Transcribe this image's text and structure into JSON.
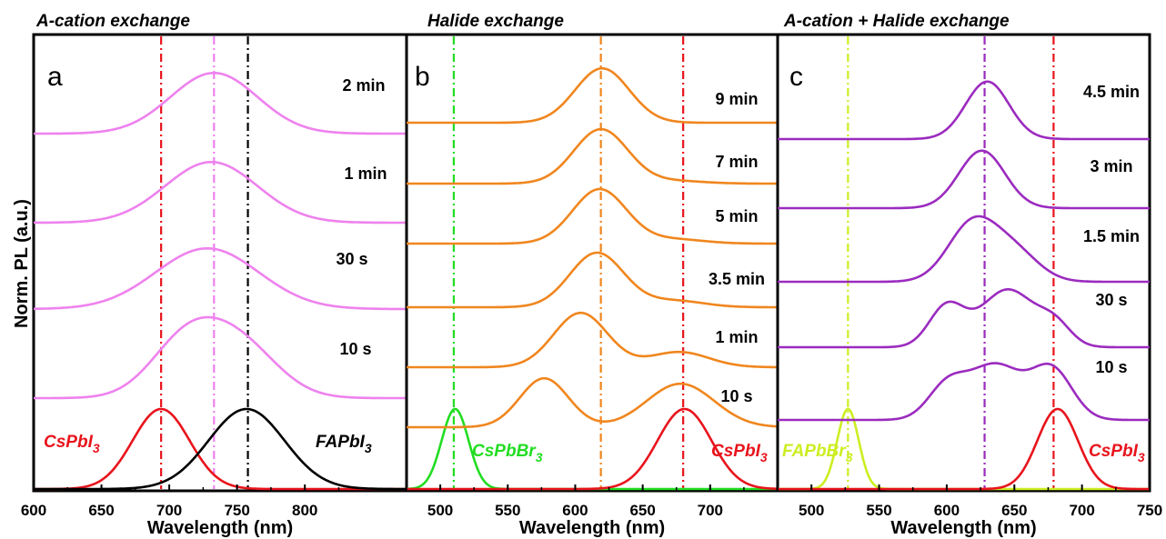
{
  "figure": {
    "ylabel": "Norm. PL (a.u.)"
  },
  "chart_data": [
    {
      "type": "line",
      "panel": "a",
      "title": "A-cation exchange",
      "xlabel": "Wavelength (nm)",
      "xlim": [
        600,
        875
      ],
      "xticks": [
        600,
        650,
        700,
        750,
        800
      ],
      "color_trace": "#ee82ee",
      "vlines": [
        {
          "x": 694,
          "color": "#e8141c"
        },
        {
          "x": 733,
          "color": "#ee82ee"
        },
        {
          "x": 758,
          "color": "#000000"
        }
      ],
      "references": [
        {
          "name": "CsPbI",
          "sub": "3",
          "color": "#e8141c",
          "peaks": [
            {
              "c": 694,
              "w": 21,
              "a": 1
            }
          ]
        },
        {
          "name": "FAPbI",
          "sub": "3",
          "color": "#000000",
          "peaks": [
            {
              "c": 757,
              "w": 28,
              "a": 1
            }
          ]
        }
      ],
      "series": [
        {
          "name": "10 s",
          "peaks": [
            {
              "c": 712,
              "w": 26,
              "a": 0.9
            },
            {
              "c": 752,
              "w": 28,
              "a": 0.85
            }
          ]
        },
        {
          "name": "30 s",
          "peaks": [
            {
              "c": 728,
              "w": 38,
              "a": 1
            }
          ]
        },
        {
          "name": "1 min",
          "peaks": [
            {
              "c": 731,
              "w": 34,
              "a": 1
            }
          ]
        },
        {
          "name": "2 min",
          "peaks": [
            {
              "c": 733,
              "w": 32,
              "a": 1
            }
          ]
        }
      ]
    },
    {
      "type": "line",
      "panel": "b",
      "title": "Halide  exchange",
      "xlabel": "Wavelength (nm)",
      "xlim": [
        475,
        750
      ],
      "xticks": [
        500,
        550,
        600,
        650,
        700
      ],
      "color_trace": "#f0861e",
      "vlines": [
        {
          "x": 510,
          "color": "#22dd22"
        },
        {
          "x": 619,
          "color": "#f0861e"
        },
        {
          "x": 680,
          "color": "#e8141c"
        }
      ],
      "references": [
        {
          "name": "CsPbBr",
          "sub": "3",
          "color": "#22dd22",
          "peaks": [
            {
              "c": 511,
              "w": 10,
              "a": 1
            }
          ]
        },
        {
          "name": "CsPbI",
          "sub": "3",
          "color": "#e8141c",
          "peaks": [
            {
              "c": 681,
              "w": 20,
              "a": 1
            }
          ]
        }
      ],
      "series": [
        {
          "name": "10 s",
          "peaks": [
            {
              "c": 577,
              "w": 18,
              "a": 0.9
            },
            {
              "c": 678,
              "w": 25,
              "a": 0.8
            }
          ]
        },
        {
          "name": "1 min",
          "peaks": [
            {
              "c": 604,
              "w": 20,
              "a": 1
            },
            {
              "c": 677,
              "w": 22,
              "a": 0.28
            }
          ]
        },
        {
          "name": "3.5 min",
          "peaks": [
            {
              "c": 616,
              "w": 20,
              "a": 1
            },
            {
              "c": 673,
              "w": 22,
              "a": 0.12
            }
          ]
        },
        {
          "name": "5 min",
          "peaks": [
            {
              "c": 618,
              "w": 20,
              "a": 1
            },
            {
              "c": 673,
              "w": 22,
              "a": 0.08
            }
          ]
        },
        {
          "name": "7 min",
          "peaks": [
            {
              "c": 619,
              "w": 20,
              "a": 1
            },
            {
              "c": 673,
              "w": 22,
              "a": 0.05
            }
          ]
        },
        {
          "name": "9 min",
          "peaks": [
            {
              "c": 620,
              "w": 20,
              "a": 1
            }
          ]
        }
      ]
    },
    {
      "type": "line",
      "panel": "c",
      "title": "A-cation + Halide  exchange",
      "xlabel": "Wavelength (nm)",
      "xlim": [
        475,
        750
      ],
      "xticks": [
        500,
        550,
        600,
        650,
        700,
        750
      ],
      "color_trace": "#9b2bbf",
      "vlines": [
        {
          "x": 527,
          "color": "#ccee22"
        },
        {
          "x": 628,
          "color": "#9b2bbf"
        },
        {
          "x": 679,
          "color": "#e8141c"
        }
      ],
      "references": [
        {
          "name": "FAPbBr",
          "sub": "3",
          "color": "#ccee22",
          "peaks": [
            {
              "c": 527,
              "w": 8,
              "a": 1
            }
          ]
        },
        {
          "name": "CsPbI",
          "sub": "3",
          "color": "#e8141c",
          "peaks": [
            {
              "c": 682,
              "w": 15,
              "a": 1
            }
          ]
        }
      ],
      "series": [
        {
          "name": "10 s",
          "peaks": [
            {
              "c": 600,
              "w": 14,
              "a": 0.55
            },
            {
              "c": 636,
              "w": 20,
              "a": 0.95
            },
            {
              "c": 678,
              "w": 15,
              "a": 0.85
            }
          ]
        },
        {
          "name": "30 s",
          "peaks": [
            {
              "c": 600,
              "w": 13,
              "a": 0.7
            },
            {
              "c": 645,
              "w": 20,
              "a": 1
            },
            {
              "c": 680,
              "w": 12,
              "a": 0.35
            }
          ]
        },
        {
          "name": "1.5 min",
          "peaks": [
            {
              "c": 619,
              "w": 18,
              "a": 1
            },
            {
              "c": 650,
              "w": 18,
              "a": 0.5
            }
          ]
        },
        {
          "name": "3 min",
          "peaks": [
            {
              "c": 626,
              "w": 17,
              "a": 1
            }
          ]
        },
        {
          "name": "4.5 min",
          "peaks": [
            {
              "c": 630,
              "w": 16,
              "a": 1
            }
          ]
        }
      ]
    }
  ]
}
